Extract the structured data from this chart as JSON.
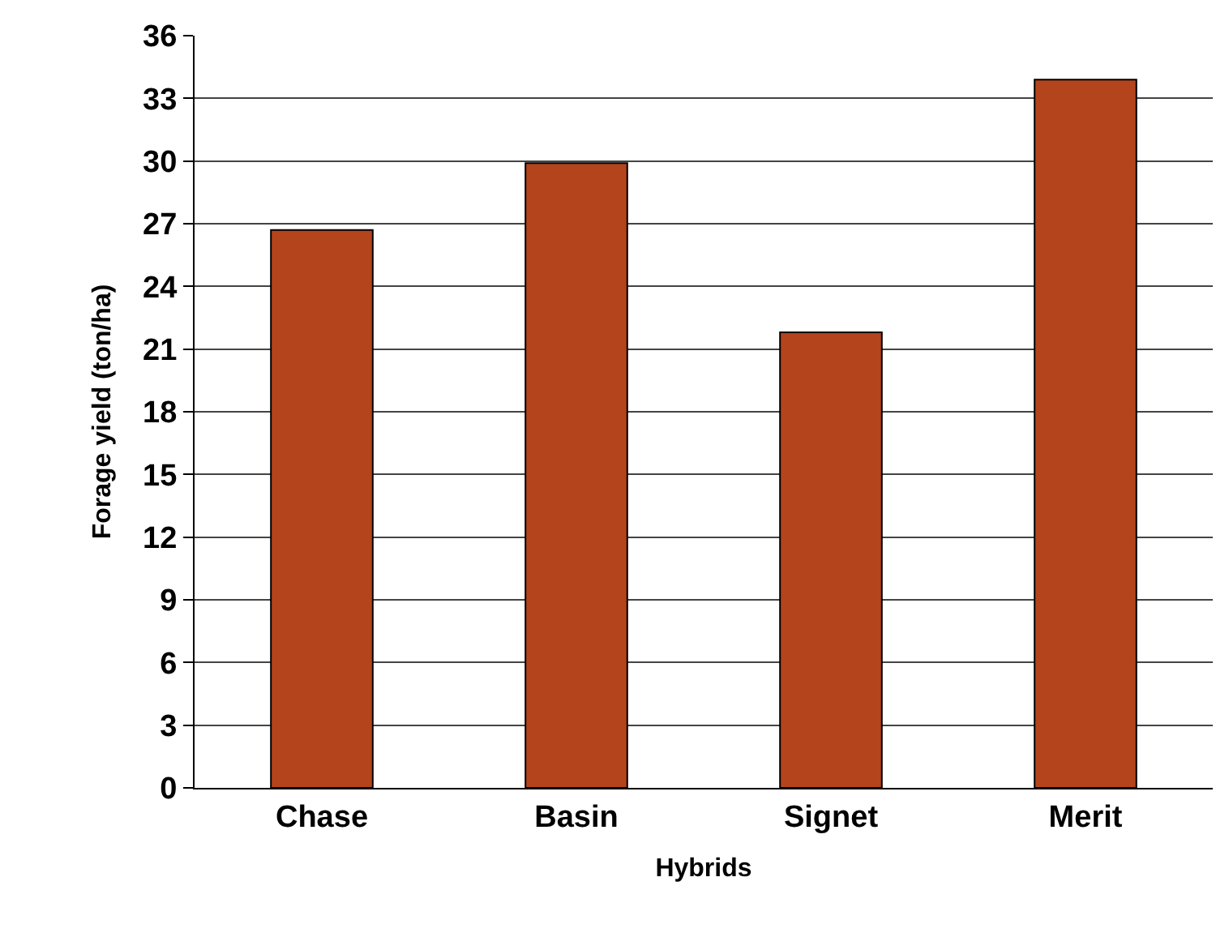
{
  "chart_data": {
    "type": "bar",
    "xlabel": "Hybrids",
    "ylabel": "Forage yield (ton/ha)",
    "categories": [
      "Chase",
      "Basin",
      "Signet",
      "Merit"
    ],
    "values": [
      26.7,
      29.9,
      21.8,
      33.9
    ],
    "color": "#b4441c",
    "ylim": [
      0,
      36
    ],
    "yticks": [
      0,
      3,
      6,
      9,
      12,
      15,
      18,
      21,
      24,
      27,
      30,
      33,
      36
    ],
    "grid": "y"
  }
}
